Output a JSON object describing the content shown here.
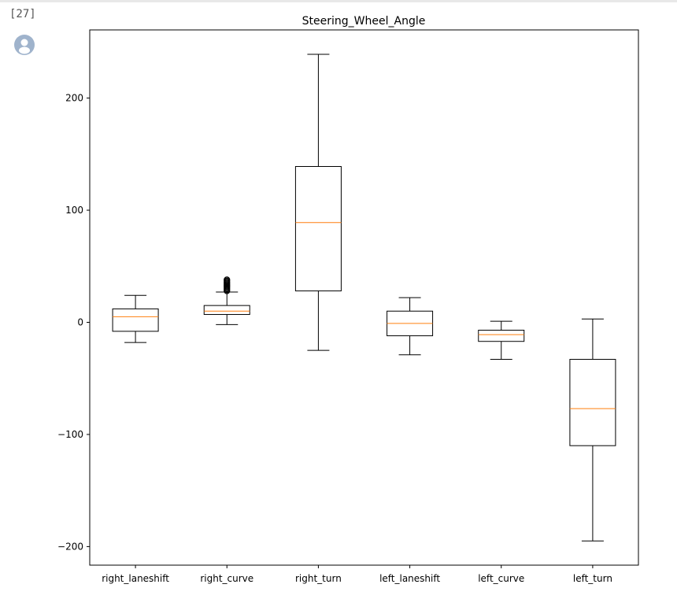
{
  "cell": {
    "prompt": "[27]"
  },
  "chart_data": {
    "type": "boxplot",
    "title": "Steering_Wheel_Angle",
    "xlabel": "",
    "ylabel": "",
    "ylim": [
      -215,
      260
    ],
    "yticks": [
      200,
      100,
      0,
      -100,
      -200
    ],
    "ytick_labels": [
      "200",
      "100",
      "0",
      "−100",
      "−200"
    ],
    "grid": false,
    "colors": {
      "box": "#000000",
      "median": "#ff7f0e",
      "outlier": "#000000"
    },
    "categories": [
      "right_laneshift",
      "right_curve",
      "right_turn",
      "left_laneshift",
      "left_curve",
      "left_turn"
    ],
    "boxes": [
      {
        "whislo": -18,
        "q1": -8,
        "med": 5,
        "q3": 12,
        "whishi": 24,
        "fliers": []
      },
      {
        "whislo": -2,
        "q1": 7,
        "med": 10,
        "q3": 15,
        "whishi": 27,
        "fliers": [
          28,
          29,
          30,
          31,
          32,
          33,
          34,
          35,
          36,
          37,
          38
        ]
      },
      {
        "whislo": -25,
        "q1": 28,
        "med": 89,
        "q3": 139,
        "whishi": 239,
        "fliers": []
      },
      {
        "whislo": -29,
        "q1": -12,
        "med": -1,
        "q3": 10,
        "whishi": 22,
        "fliers": []
      },
      {
        "whislo": -33,
        "q1": -17,
        "med": -11,
        "q3": -7,
        "whishi": 1,
        "fliers": []
      },
      {
        "whislo": -195,
        "q1": -110,
        "med": -77,
        "q3": -33,
        "whishi": 3,
        "fliers": []
      }
    ]
  }
}
